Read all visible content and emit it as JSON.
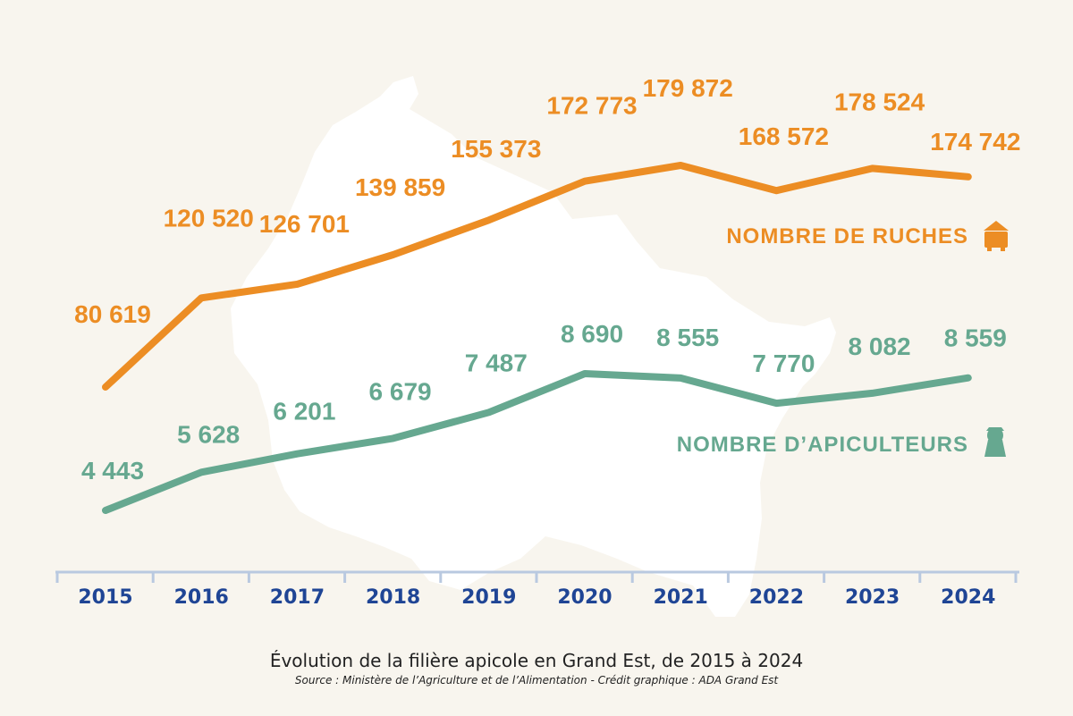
{
  "colors": {
    "background": "#f8f5ee",
    "silhouette": "#ffffff",
    "ruches": "#ec8d24",
    "apiculteurs": "#66a890",
    "axis": "#b9c9e0",
    "year_labels": "#1f4595",
    "caption": "#222222"
  },
  "caption": {
    "title": "Évolution de la filière apicole en Grand Est, de 2015 à 2024",
    "source": "Source : Ministère de l’Agriculture et de l’Alimentation - Crédit graphique : ADA Grand Est"
  },
  "chart_data": {
    "type": "line",
    "x": [
      2015,
      2016,
      2017,
      2018,
      2019,
      2020,
      2021,
      2022,
      2023,
      2024
    ],
    "tick_labels": [
      "2015",
      "2016",
      "2017",
      "2018",
      "2019",
      "2020",
      "2021",
      "2022",
      "2023",
      "2024"
    ],
    "title": "",
    "xlabel": "",
    "ylabel": "",
    "grid": false,
    "series": [
      {
        "name": "NOMBRE DE RUCHES",
        "icon": "beehive-icon",
        "values": [
          80619,
          120520,
          126701,
          139859,
          155373,
          172773,
          179872,
          168572,
          178524,
          174742
        ],
        "labels": [
          "80 619",
          "120 520",
          "126 701",
          "139 859",
          "155 373",
          "172 773",
          "179 872",
          "168 572",
          "178 524",
          "174 742"
        ]
      },
      {
        "name": "NOMBRE D’APICULTEURS",
        "icon": "beekeeper-icon",
        "values": [
          4443,
          5628,
          6201,
          6679,
          7487,
          8690,
          8555,
          7770,
          8082,
          8559
        ],
        "labels": [
          "4 443",
          "5 628",
          "6 201",
          "6 679",
          "7 487",
          "8 690",
          "8 555",
          "7 770",
          "8 082",
          "8 559"
        ]
      }
    ]
  }
}
